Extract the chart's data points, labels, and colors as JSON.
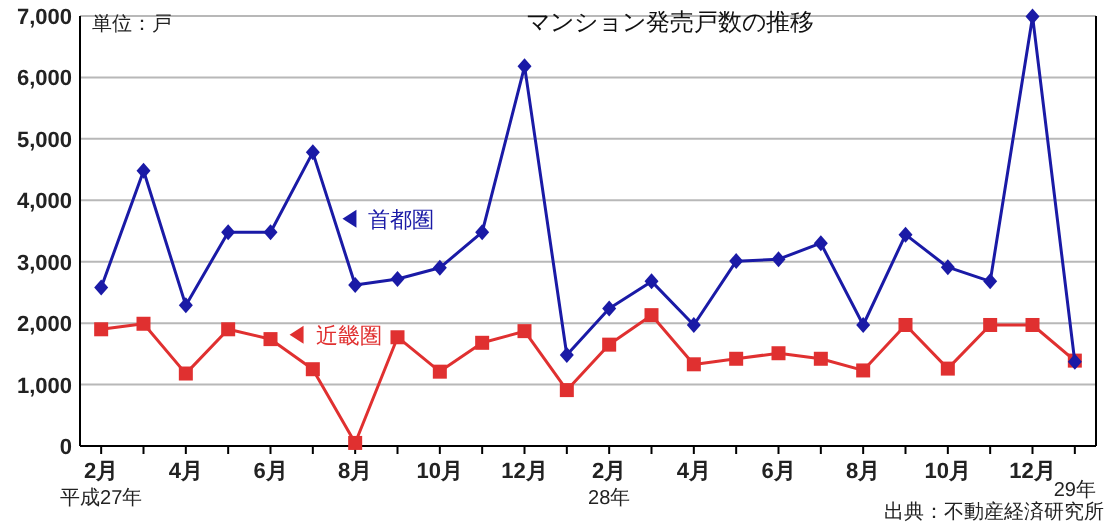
{
  "chart_data": {
    "type": "line",
    "title": "マンション発売戸数の推移",
    "categories": [
      "2月",
      null,
      "4月",
      null,
      "6月",
      null,
      "8月",
      null,
      "10月",
      null,
      "12月",
      null,
      "2月",
      null,
      "4月",
      null,
      "6月",
      null,
      "8月",
      null,
      "10月",
      null,
      "12月",
      null
    ],
    "series": [
      {
        "name": "首都圏",
        "color": "#1a1aa6",
        "marker": "diamond",
        "values": [
          2580,
          4480,
          2290,
          3480,
          3480,
          4780,
          2620,
          2720,
          2900,
          3480,
          6180,
          1480,
          2240,
          2680,
          1970,
          3010,
          3040,
          3300,
          1970,
          3440,
          2910,
          2680,
          6990,
          1370
        ]
      },
      {
        "name": "近畿圏",
        "color": "#e03030",
        "marker": "square",
        "values": [
          1900,
          1990,
          1180,
          1900,
          1740,
          1250,
          50,
          1770,
          1210,
          1680,
          1870,
          910,
          1650,
          2130,
          1330,
          1420,
          1510,
          1420,
          1230,
          1970,
          1260,
          1970,
          1970,
          1390
        ]
      }
    ],
    "ylim": [
      0,
      7000
    ],
    "yticks": [
      {
        "value": 0,
        "label": "0"
      },
      {
        "value": 1000,
        "label": "1,000"
      },
      {
        "value": 2000,
        "label": "2,000"
      },
      {
        "value": 3000,
        "label": "3,000"
      },
      {
        "value": 4000,
        "label": "4,000"
      },
      {
        "value": 5000,
        "label": "5,000"
      },
      {
        "value": 6000,
        "label": "6,000"
      },
      {
        "value": 7000,
        "label": "7,000"
      }
    ],
    "grid": "y",
    "legend": "center",
    "line_style": "solid",
    "annotations": [
      "単位：戸",
      "出典：不動産経済研究所",
      "平成27年",
      "28年",
      "29年"
    ]
  }
}
